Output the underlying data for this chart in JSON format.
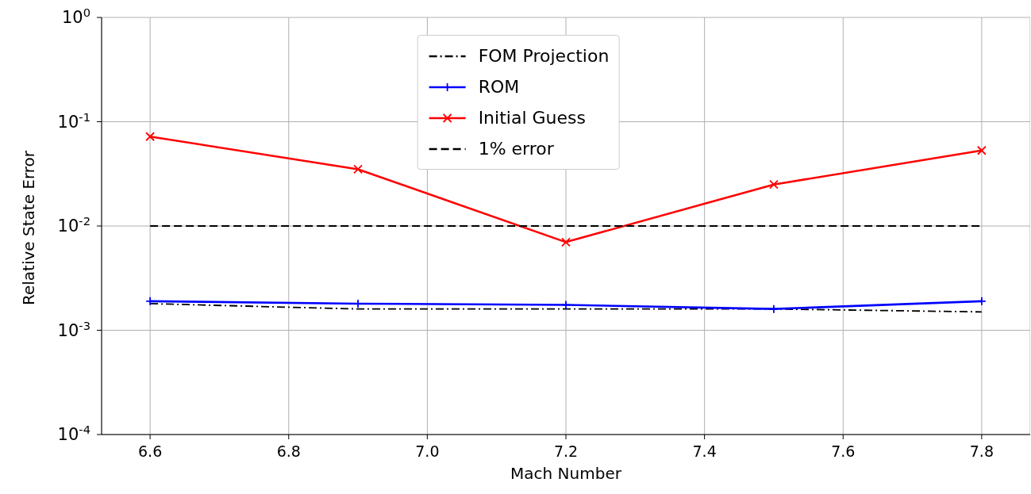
{
  "chart_data": {
    "type": "line",
    "xlabel": "Mach Number",
    "ylabel": "Relative State Error",
    "x": [
      6.6,
      6.9,
      7.2,
      7.5,
      7.8
    ],
    "series": [
      {
        "name": "FOM Projection",
        "color": "#000000",
        "line_style": "dashdot",
        "marker": "none",
        "values": [
          0.0018,
          0.0016,
          0.0016,
          0.0016,
          0.0015
        ]
      },
      {
        "name": "ROM",
        "color": "#0000ff",
        "line_style": "solid",
        "marker": "plus",
        "values": [
          0.0019,
          0.0018,
          0.00175,
          0.0016,
          0.0019
        ]
      },
      {
        "name": "Initial Guess",
        "color": "#ff0000",
        "line_style": "solid",
        "marker": "cross",
        "values": [
          0.072,
          0.035,
          0.007,
          0.025,
          0.053
        ]
      },
      {
        "name": "1% error",
        "color": "#000000",
        "line_style": "dashed",
        "marker": "none",
        "x": [
          6.6,
          7.8
        ],
        "values": [
          0.01,
          0.01
        ]
      }
    ],
    "log": "y",
    "xlim": [
      6.53,
      7.87
    ],
    "xticks": [
      {
        "value": 6.6,
        "label": "6.6"
      },
      {
        "value": 6.8,
        "label": "6.8"
      },
      {
        "value": 7.0,
        "label": "7.0"
      },
      {
        "value": 7.2,
        "label": "7.2"
      },
      {
        "value": 7.4,
        "label": "7.4"
      },
      {
        "value": 7.6,
        "label": "7.6"
      },
      {
        "value": 7.8,
        "label": "7.8"
      }
    ],
    "ylim": [
      0.0001,
      1
    ],
    "yticks": [
      {
        "value": 0.0001,
        "label": "10$^{-4}$"
      },
      {
        "value": 0.001,
        "label": "10$^{-3}$"
      },
      {
        "value": 0.01,
        "label": "10$^{-2}$"
      },
      {
        "value": 0.1,
        "label": "10$^{-1}$"
      },
      {
        "value": 1,
        "label": "10$^{0}$"
      }
    ],
    "grid": true,
    "legend": "top"
  }
}
